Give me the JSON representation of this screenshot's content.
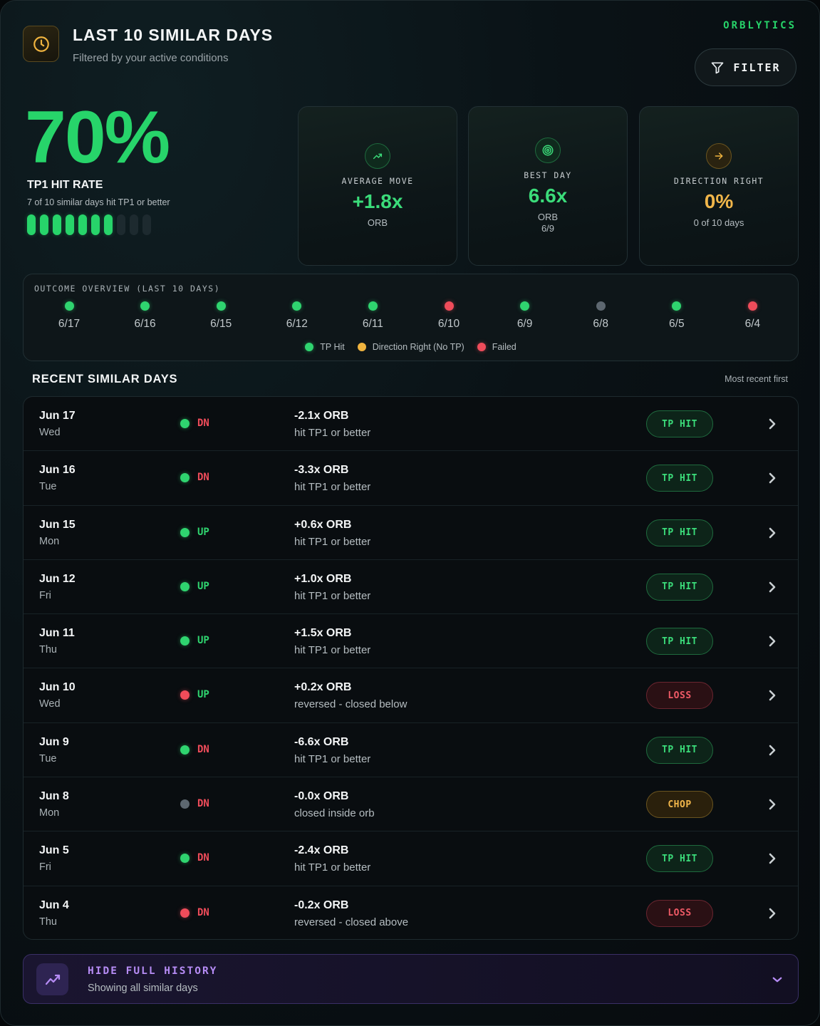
{
  "header": {
    "title": "LAST 10 SIMILAR DAYS",
    "subtitle": "Filtered by your active conditions",
    "brand": "ORBLYTICS",
    "filter_label": "FILTER"
  },
  "hero": {
    "percent": "70%",
    "label": "TP1 HIT RATE",
    "sub": "7 of 10 similar days hit TP1 or better",
    "hits": 7,
    "total": 10
  },
  "stats": [
    {
      "icon": "trending-up-icon",
      "label": "AVERAGE MOVE",
      "value": "+1.8x",
      "sub": "ORB",
      "sub2": ""
    },
    {
      "icon": "target-icon",
      "label": "BEST DAY",
      "value": "6.6x",
      "sub": "ORB",
      "sub2": "6/9"
    },
    {
      "icon": "arrow-right-icon",
      "label": "DIRECTION RIGHT",
      "value": "0%",
      "sub": "0 of 10 days",
      "sub2": ""
    }
  ],
  "overview": {
    "title": "OUTCOME OVERVIEW (LAST 10 DAYS)",
    "days": [
      {
        "date": "6/17",
        "status": "tp"
      },
      {
        "date": "6/16",
        "status": "tp"
      },
      {
        "date": "6/15",
        "status": "tp"
      },
      {
        "date": "6/12",
        "status": "tp"
      },
      {
        "date": "6/11",
        "status": "tp"
      },
      {
        "date": "6/10",
        "status": "failed"
      },
      {
        "date": "6/9",
        "status": "tp"
      },
      {
        "date": "6/8",
        "status": "neutral"
      },
      {
        "date": "6/5",
        "status": "tp"
      },
      {
        "date": "6/4",
        "status": "failed"
      }
    ],
    "legend": [
      {
        "label": "TP Hit",
        "color": "#2fd46f"
      },
      {
        "label": "Direction Right (No TP)",
        "color": "#f0b43f"
      },
      {
        "label": "Failed",
        "color": "#ef4c5a"
      }
    ]
  },
  "recent": {
    "title": "RECENT SIMILAR DAYS",
    "note": "Most recent first",
    "rows": [
      {
        "date": "Jun 17",
        "dow": "Wed",
        "dot": "g",
        "dir": "DN",
        "move": "-2.1x ORB",
        "desc": "hit TP1 or better",
        "badge": "TP HIT",
        "kind": "tp"
      },
      {
        "date": "Jun 16",
        "dow": "Tue",
        "dot": "g",
        "dir": "DN",
        "move": "-3.3x ORB",
        "desc": "hit TP1 or better",
        "badge": "TP HIT",
        "kind": "tp"
      },
      {
        "date": "Jun 15",
        "dow": "Mon",
        "dot": "g",
        "dir": "UP",
        "move": "+0.6x ORB",
        "desc": "hit TP1 or better",
        "badge": "TP HIT",
        "kind": "tp"
      },
      {
        "date": "Jun 12",
        "dow": "Fri",
        "dot": "g",
        "dir": "UP",
        "move": "+1.0x ORB",
        "desc": "hit TP1 or better",
        "badge": "TP HIT",
        "kind": "tp"
      },
      {
        "date": "Jun 11",
        "dow": "Thu",
        "dot": "g",
        "dir": "UP",
        "move": "+1.5x ORB",
        "desc": "hit TP1 or better",
        "badge": "TP HIT",
        "kind": "tp"
      },
      {
        "date": "Jun 10",
        "dow": "Wed",
        "dot": "r",
        "dir": "UP",
        "move": "+0.2x ORB",
        "desc": "reversed - closed below",
        "badge": "LOSS",
        "kind": "loss"
      },
      {
        "date": "Jun 9",
        "dow": "Tue",
        "dot": "g",
        "dir": "DN",
        "move": "-6.6x ORB",
        "desc": "hit TP1 or better",
        "badge": "TP HIT",
        "kind": "tp"
      },
      {
        "date": "Jun 8",
        "dow": "Mon",
        "dot": "n",
        "dir": "DN",
        "move": "-0.0x ORB",
        "desc": "closed inside orb",
        "badge": "CHOP",
        "kind": "chop"
      },
      {
        "date": "Jun 5",
        "dow": "Fri",
        "dot": "g",
        "dir": "DN",
        "move": "-2.4x ORB",
        "desc": "hit TP1 or better",
        "badge": "TP HIT",
        "kind": "tp"
      },
      {
        "date": "Jun 4",
        "dow": "Thu",
        "dot": "r",
        "dir": "DN",
        "move": "-0.2x ORB",
        "desc": "reversed - closed above",
        "badge": "LOSS",
        "kind": "loss"
      }
    ]
  },
  "history": {
    "title": "HIDE FULL HISTORY",
    "sub": "Showing all similar days"
  }
}
